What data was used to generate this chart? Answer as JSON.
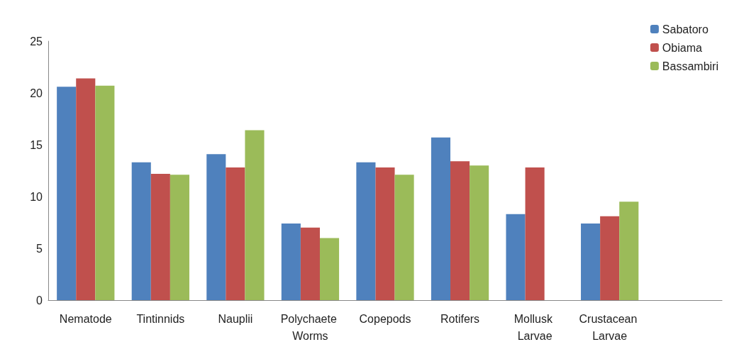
{
  "chart_data": {
    "type": "bar",
    "categories": [
      "Nematode",
      "Tintinnids",
      "Nauplii",
      "Polychaete Worms",
      "Copepods",
      "Rotifers",
      "Mollusk Larvae",
      "Crustacean Larvae",
      null
    ],
    "series": [
      {
        "name": "Sabatoro",
        "color": "#4f81bd",
        "values": [
          20.6,
          13.3,
          14.1,
          7.4,
          13.3,
          15.7,
          8.3,
          7.4,
          null
        ]
      },
      {
        "name": "Obiama",
        "color": "#c0504d",
        "values": [
          21.4,
          12.2,
          12.8,
          7.0,
          12.8,
          13.4,
          12.8,
          8.1,
          null
        ]
      },
      {
        "name": "Bassambiri",
        "color": "#9bbb59",
        "values": [
          20.7,
          12.1,
          16.4,
          6.0,
          12.1,
          13.0,
          null,
          9.5,
          null
        ]
      }
    ],
    "ylim": [
      0,
      25
    ],
    "yticks": [
      0,
      5,
      10,
      15,
      20,
      25
    ],
    "grid": false,
    "legend": "top right"
  }
}
